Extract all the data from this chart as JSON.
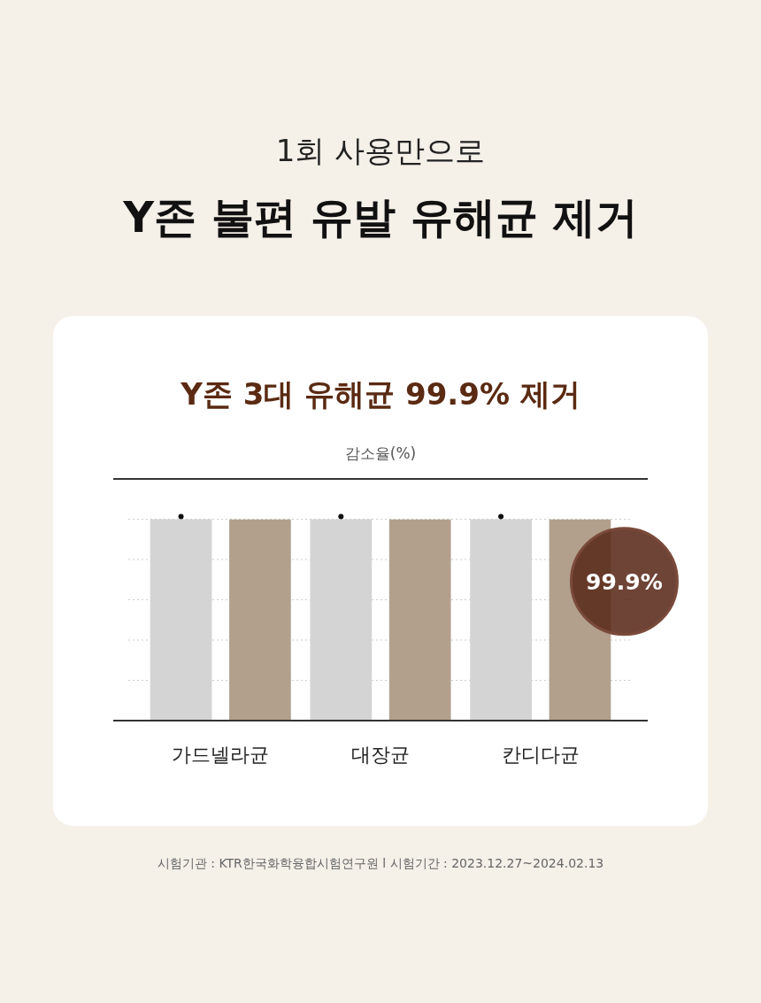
{
  "chart_data": {
    "type": "bar",
    "title": "Y존 3대 유해균 99.9% 제거",
    "ylabel": "감소율(%)",
    "annotations": [
      "1회 사용만으로",
      "Y존 불편 유발 유해균 제거",
      "시험기관 : KTR한국화학융합시험연구원 l 시험기간 : 2023.12.27~2024.02.13"
    ],
    "categories": [
      "가드넬라균",
      "대장균",
      "칸디다균"
    ],
    "series": [
      {
        "color": "#d4d4d4",
        "values": [
          100,
          100,
          100
        ]
      },
      {
        "color": "#b3a08c",
        "values": [
          99.9,
          99.9,
          99.9
        ],
        "value_labels": [
          null,
          null,
          "99.9%"
        ]
      }
    ],
    "ylim": [
      0,
      120
    ],
    "yticks": [
      {
        "value": 20,
        "label": null
      },
      {
        "value": 40,
        "label": null
      },
      {
        "value": 60,
        "label": null
      },
      {
        "value": 80,
        "label": null
      },
      {
        "value": 100,
        "label": null
      }
    ],
    "grid": "y",
    "tick_labels": "x"
  }
}
